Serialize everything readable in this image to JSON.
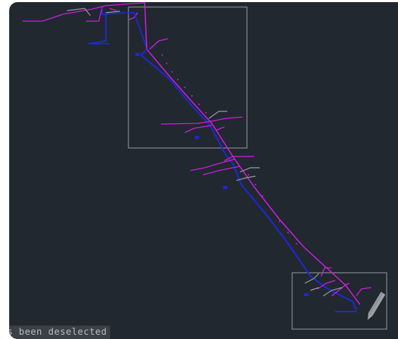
{
  "status_bar": {
    "message": "s been deselected"
  },
  "colors": {
    "canvas_bg": "#222830",
    "magenta_route": "#d21ee6",
    "blue_route": "#1e28dc",
    "selection_box": "#9aa0a6",
    "grey_annotation": "#9aa0a6",
    "status_bg": "#3b3f46",
    "status_text": "#b8bcc2"
  },
  "icons": {
    "pen": "pencil-icon"
  }
}
